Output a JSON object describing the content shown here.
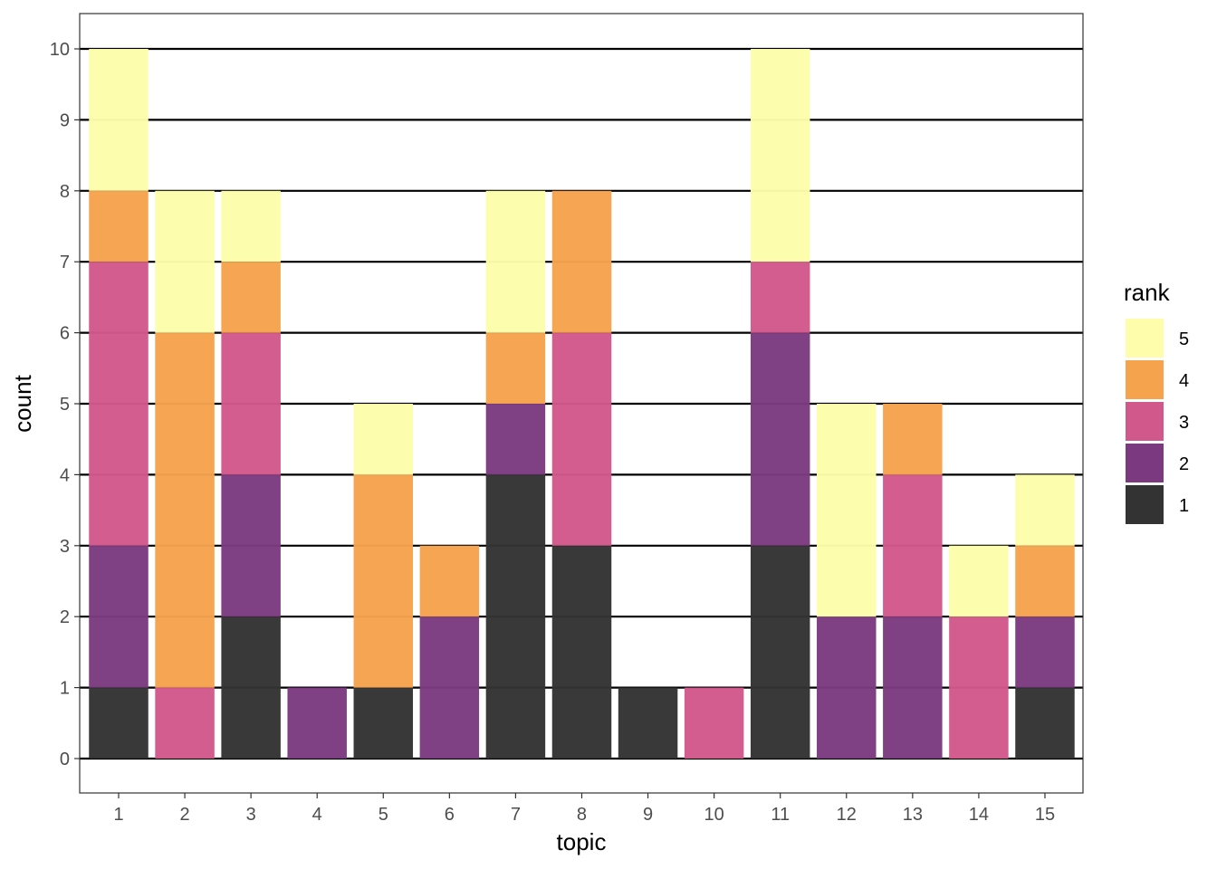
{
  "chart_data": {
    "type": "bar",
    "stacked": true,
    "xlabel": "topic",
    "ylabel": "count",
    "ylim": [
      0,
      10
    ],
    "y_ticks": [
      0,
      1,
      2,
      3,
      4,
      5,
      6,
      7,
      8,
      9,
      10
    ],
    "categories": [
      "1",
      "2",
      "3",
      "4",
      "5",
      "6",
      "7",
      "8",
      "9",
      "10",
      "11",
      "12",
      "13",
      "14",
      "15"
    ],
    "grid": "major horizontal",
    "legend": {
      "title": "rank",
      "position": "right"
    },
    "series": [
      {
        "name": "1",
        "color": "#333333",
        "values": [
          1,
          0,
          2,
          0,
          1,
          0,
          4,
          3,
          1,
          0,
          3,
          0,
          0,
          0,
          1
        ]
      },
      {
        "name": "2",
        "color": "#7b3a80",
        "values": [
          2,
          0,
          2,
          1,
          0,
          2,
          1,
          0,
          0,
          0,
          3,
          2,
          2,
          0,
          1
        ]
      },
      {
        "name": "3",
        "color": "#d1588a",
        "values": [
          4,
          1,
          2,
          0,
          0,
          0,
          0,
          3,
          0,
          1,
          1,
          0,
          2,
          2,
          0
        ]
      },
      {
        "name": "4",
        "color": "#f6a34d",
        "values": [
          1,
          5,
          1,
          0,
          3,
          1,
          1,
          2,
          0,
          0,
          0,
          0,
          1,
          0,
          1
        ]
      },
      {
        "name": "5",
        "color": "#fdfdab",
        "values": [
          2,
          2,
          1,
          0,
          1,
          0,
          2,
          0,
          0,
          0,
          3,
          3,
          0,
          1,
          1
        ]
      }
    ]
  }
}
